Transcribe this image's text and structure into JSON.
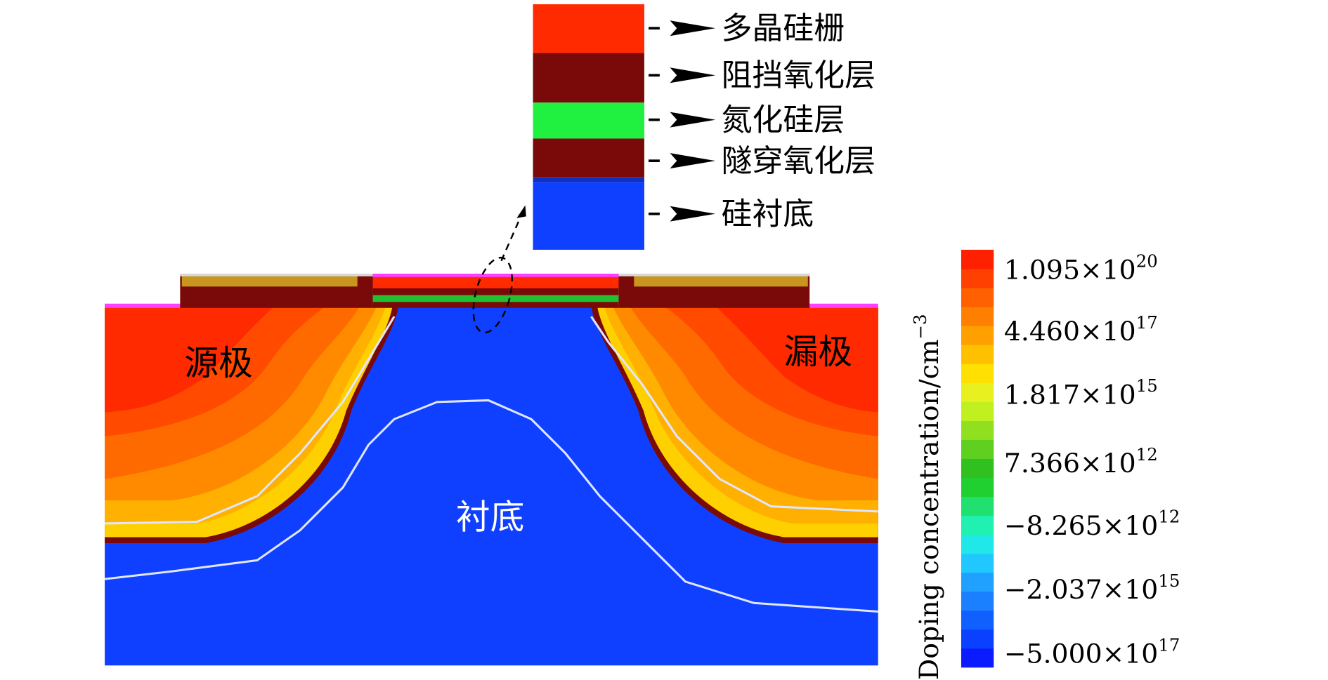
{
  "layers": [
    {
      "label": "多晶硅栅"
    },
    {
      "label": "阻挡氧化层"
    },
    {
      "label": "氮化硅层"
    },
    {
      "label": "隧穿氧化层"
    },
    {
      "label": "硅衬底"
    }
  ],
  "regions": {
    "source": "源极",
    "drain": "漏极",
    "substrate": "衬底"
  },
  "colorbar": {
    "title": "Doping concentration/cm",
    "title_sup": "−3",
    "ticks": [
      {
        "text": "1.095×10",
        "sup": "20"
      },
      {
        "text": "4.460×10",
        "sup": "17"
      },
      {
        "text": "1.817×10",
        "sup": "15"
      },
      {
        "text": "7.366×10",
        "sup": "12"
      },
      {
        "text": "−8.265×10",
        "sup": "12"
      },
      {
        "text": "−2.037×10",
        "sup": "15"
      },
      {
        "text": "−5.000×10",
        "sup": "17"
      }
    ]
  }
}
